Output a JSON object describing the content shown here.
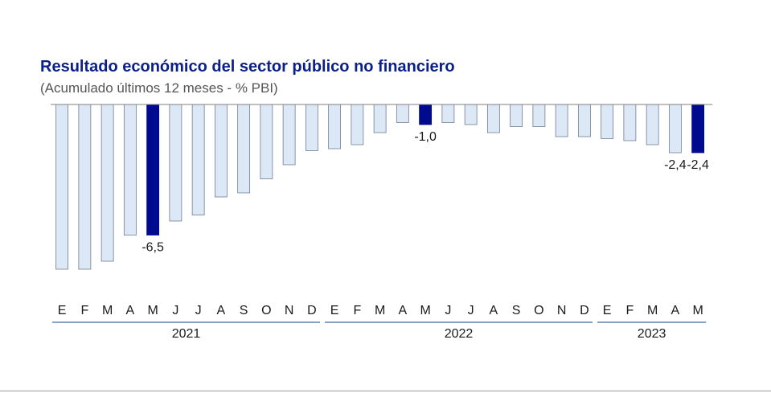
{
  "header": {
    "title": "Resultado económico del sector público no financiero",
    "subtitle": "(Acumulado últimos 12 meses - % PBI)"
  },
  "colors": {
    "bar_fill": "#dce8f5",
    "bar_stroke": "#6e7f96",
    "highlight_fill": "#000a8f",
    "baseline": "#808080",
    "year_rule": "#5b84b9",
    "text": "#1a1a1a"
  },
  "chart_data": {
    "type": "bar",
    "title": "Resultado económico del sector público no financiero",
    "subtitle": "(Acumulado últimos 12 meses - % PBI)",
    "categories": [
      "E",
      "F",
      "M",
      "A",
      "M",
      "J",
      "J",
      "A",
      "S",
      "O",
      "N",
      "D",
      "E",
      "F",
      "M",
      "A",
      "M",
      "J",
      "J",
      "A",
      "S",
      "O",
      "N",
      "D",
      "E",
      "F",
      "M",
      "A",
      "M"
    ],
    "years": [
      {
        "label": "2021",
        "count": 12
      },
      {
        "label": "2022",
        "count": 12
      },
      {
        "label": "2023",
        "count": 5
      }
    ],
    "values": [
      -8.2,
      -8.2,
      -7.8,
      -6.5,
      -6.5,
      -5.8,
      -5.5,
      -4.6,
      -4.4,
      -3.7,
      -3.0,
      -2.3,
      -2.2,
      -2.0,
      -1.4,
      -0.9,
      -1.0,
      -0.9,
      -1.0,
      -1.4,
      -1.1,
      -1.1,
      -1.6,
      -1.6,
      -1.7,
      -1.8,
      -2.0,
      -2.4,
      -2.4
    ],
    "highlighted": [
      4,
      16,
      28
    ],
    "data_labels": [
      {
        "index": 4,
        "text": "-6,5"
      },
      {
        "index": 16,
        "text": "-1,0"
      },
      {
        "index": 27,
        "text": "-2,4"
      },
      {
        "index": 28,
        "text": "-2,4"
      }
    ],
    "ylim": [
      -8.2,
      0
    ],
    "grid": false,
    "legend": "none"
  }
}
